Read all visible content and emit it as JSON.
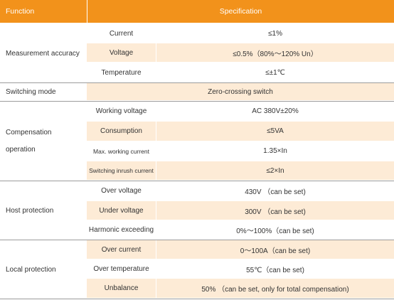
{
  "header": {
    "function": "Function",
    "specification": "Specification"
  },
  "groups": [
    {
      "label": "Measurement accuracy",
      "rows": [
        {
          "item": "Current",
          "spec": "≤1%"
        },
        {
          "item": "Voltage",
          "spec": "≤0.5%（80%～120% Un）"
        },
        {
          "item": "Temperature",
          "spec": "≤±1℃"
        }
      ]
    },
    {
      "label": "Switching mode",
      "rows": [
        {
          "item": "",
          "spec": "Zero-crossing switch"
        }
      ]
    },
    {
      "label_line1": "Compensation",
      "label_line2": "operation",
      "rows": [
        {
          "item": "Working voltage",
          "spec": "AC 380V±20%"
        },
        {
          "item": "Consumption",
          "spec": "≤5VA"
        },
        {
          "item": "Max. working current",
          "spec": "1.35×In"
        },
        {
          "item": "Switching inrush current",
          "spec": "≤2×In"
        }
      ]
    },
    {
      "label": "Host protection",
      "rows": [
        {
          "item": "Over voltage",
          "spec": "430V （can be set)"
        },
        {
          "item": "Under voltage",
          "spec": "300V （can be set)"
        },
        {
          "item": "Harmonic exceeding",
          "spec": "0%～100%（can be set)"
        }
      ]
    },
    {
      "label": "Local protection",
      "rows": [
        {
          "item": "Over current",
          "spec": "0～100A（can be set)"
        },
        {
          "item": "Over temperature",
          "spec": "55℃（can be set)"
        },
        {
          "item": "Unbalance",
          "spec": "50% （can be set, only for total compensation)"
        }
      ]
    }
  ],
  "colors": {
    "header_bg": "#f2921b",
    "shaded_row": "#fdebd6",
    "rule": "#9c9c9c"
  }
}
